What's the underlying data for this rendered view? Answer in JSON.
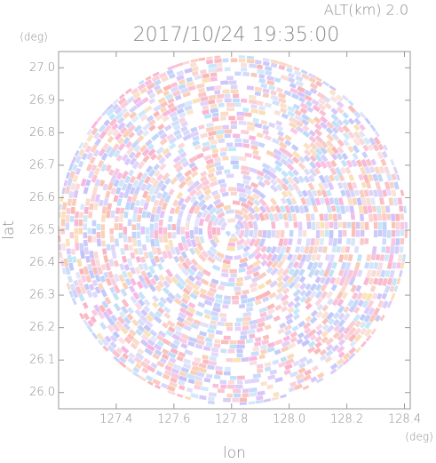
{
  "chart_data": {
    "type": "radar-image",
    "title": "2017/10/24 19:35:00",
    "altitude_label": "ALT(km) 2.0",
    "x_label": "lon",
    "y_label": "lat",
    "x_unit": "(deg)",
    "y_unit": "(deg)",
    "xlim": [
      127.2,
      128.42
    ],
    "ylim": [
      25.95,
      27.05
    ],
    "xticks": [
      127.4,
      127.6,
      127.8,
      {
        "value": 128,
        "label": "128.0"
      },
      128.2,
      128.4
    ],
    "yticks": [
      {
        "value": 26,
        "label": "26.0"
      },
      26.1,
      26.2,
      26.3,
      26.4,
      26.5,
      26.6,
      26.7,
      26.8,
      26.9,
      {
        "value": 27,
        "label": "27.0"
      }
    ]
  }
}
